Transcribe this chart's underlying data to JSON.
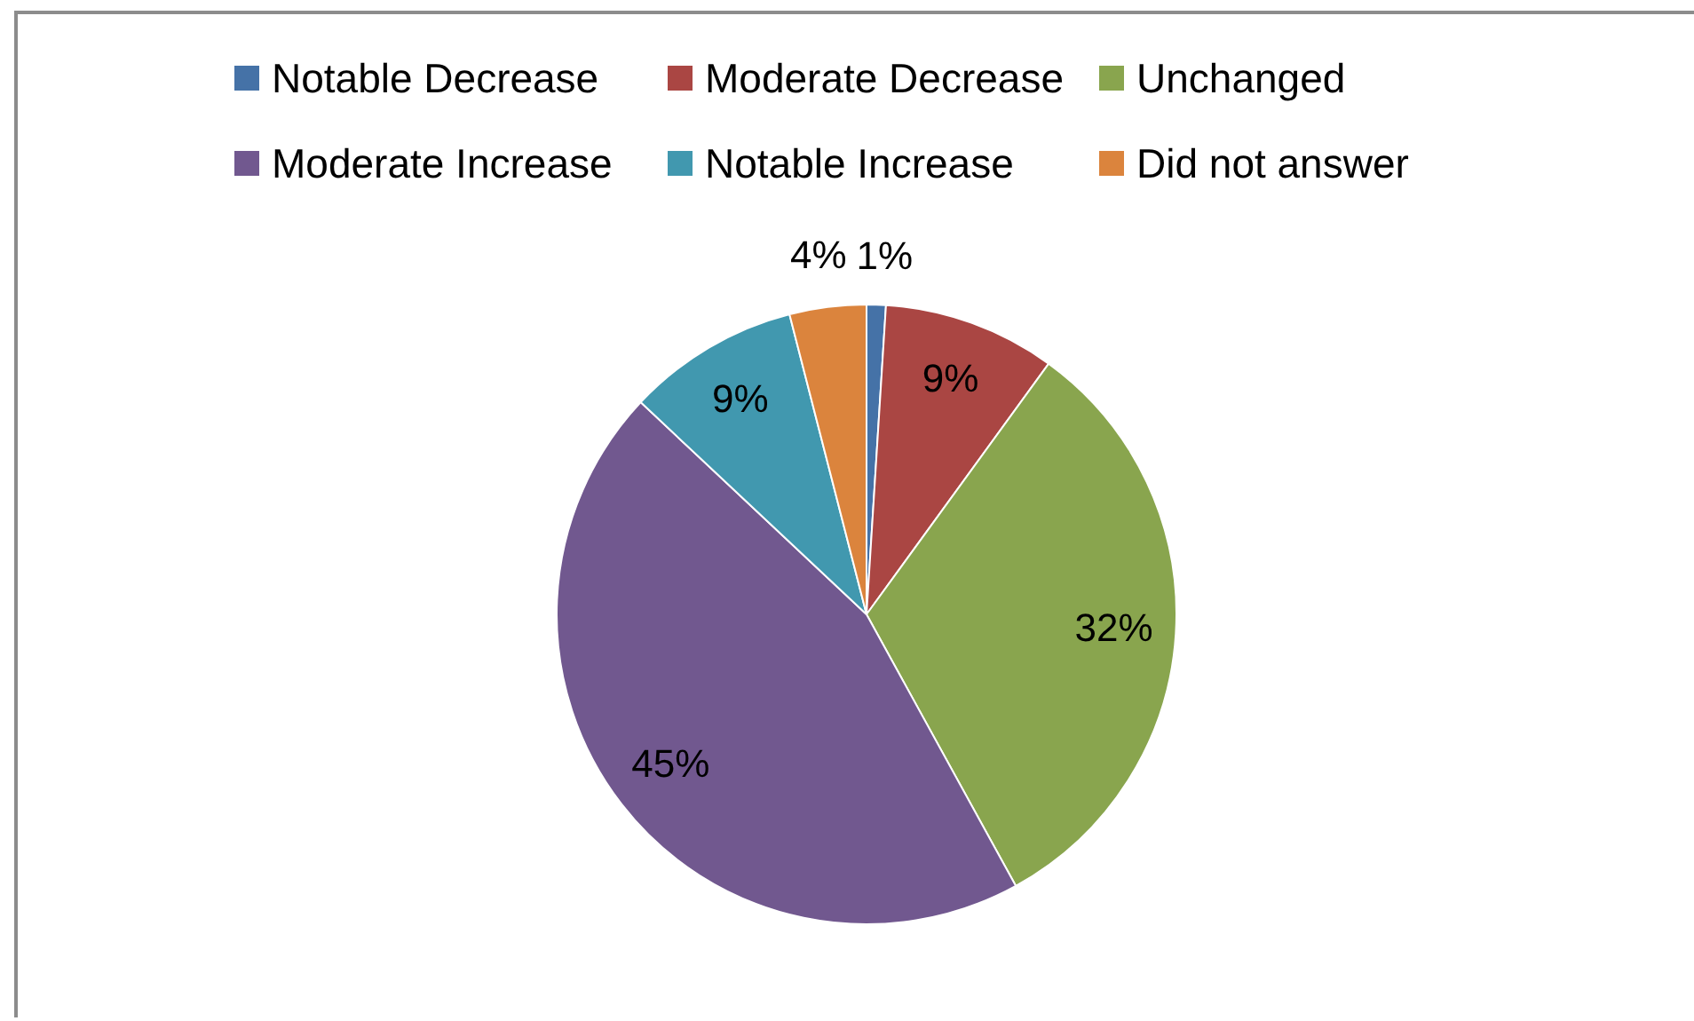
{
  "chart_data": {
    "type": "pie",
    "categories": [
      "Notable Decrease",
      "Moderate Decrease",
      "Unchanged",
      "Moderate Increase",
      "Notable Increase",
      "Did not answer"
    ],
    "values": [
      1,
      9,
      32,
      45,
      9,
      4
    ],
    "colors": [
      "#4572a7",
      "#aa4643",
      "#89a54e",
      "#71588f",
      "#4198af",
      "#db843d"
    ],
    "value_labels": [
      "1%",
      "9%",
      "32%",
      "45%",
      "9%",
      "4%"
    ],
    "legend": "top"
  }
}
